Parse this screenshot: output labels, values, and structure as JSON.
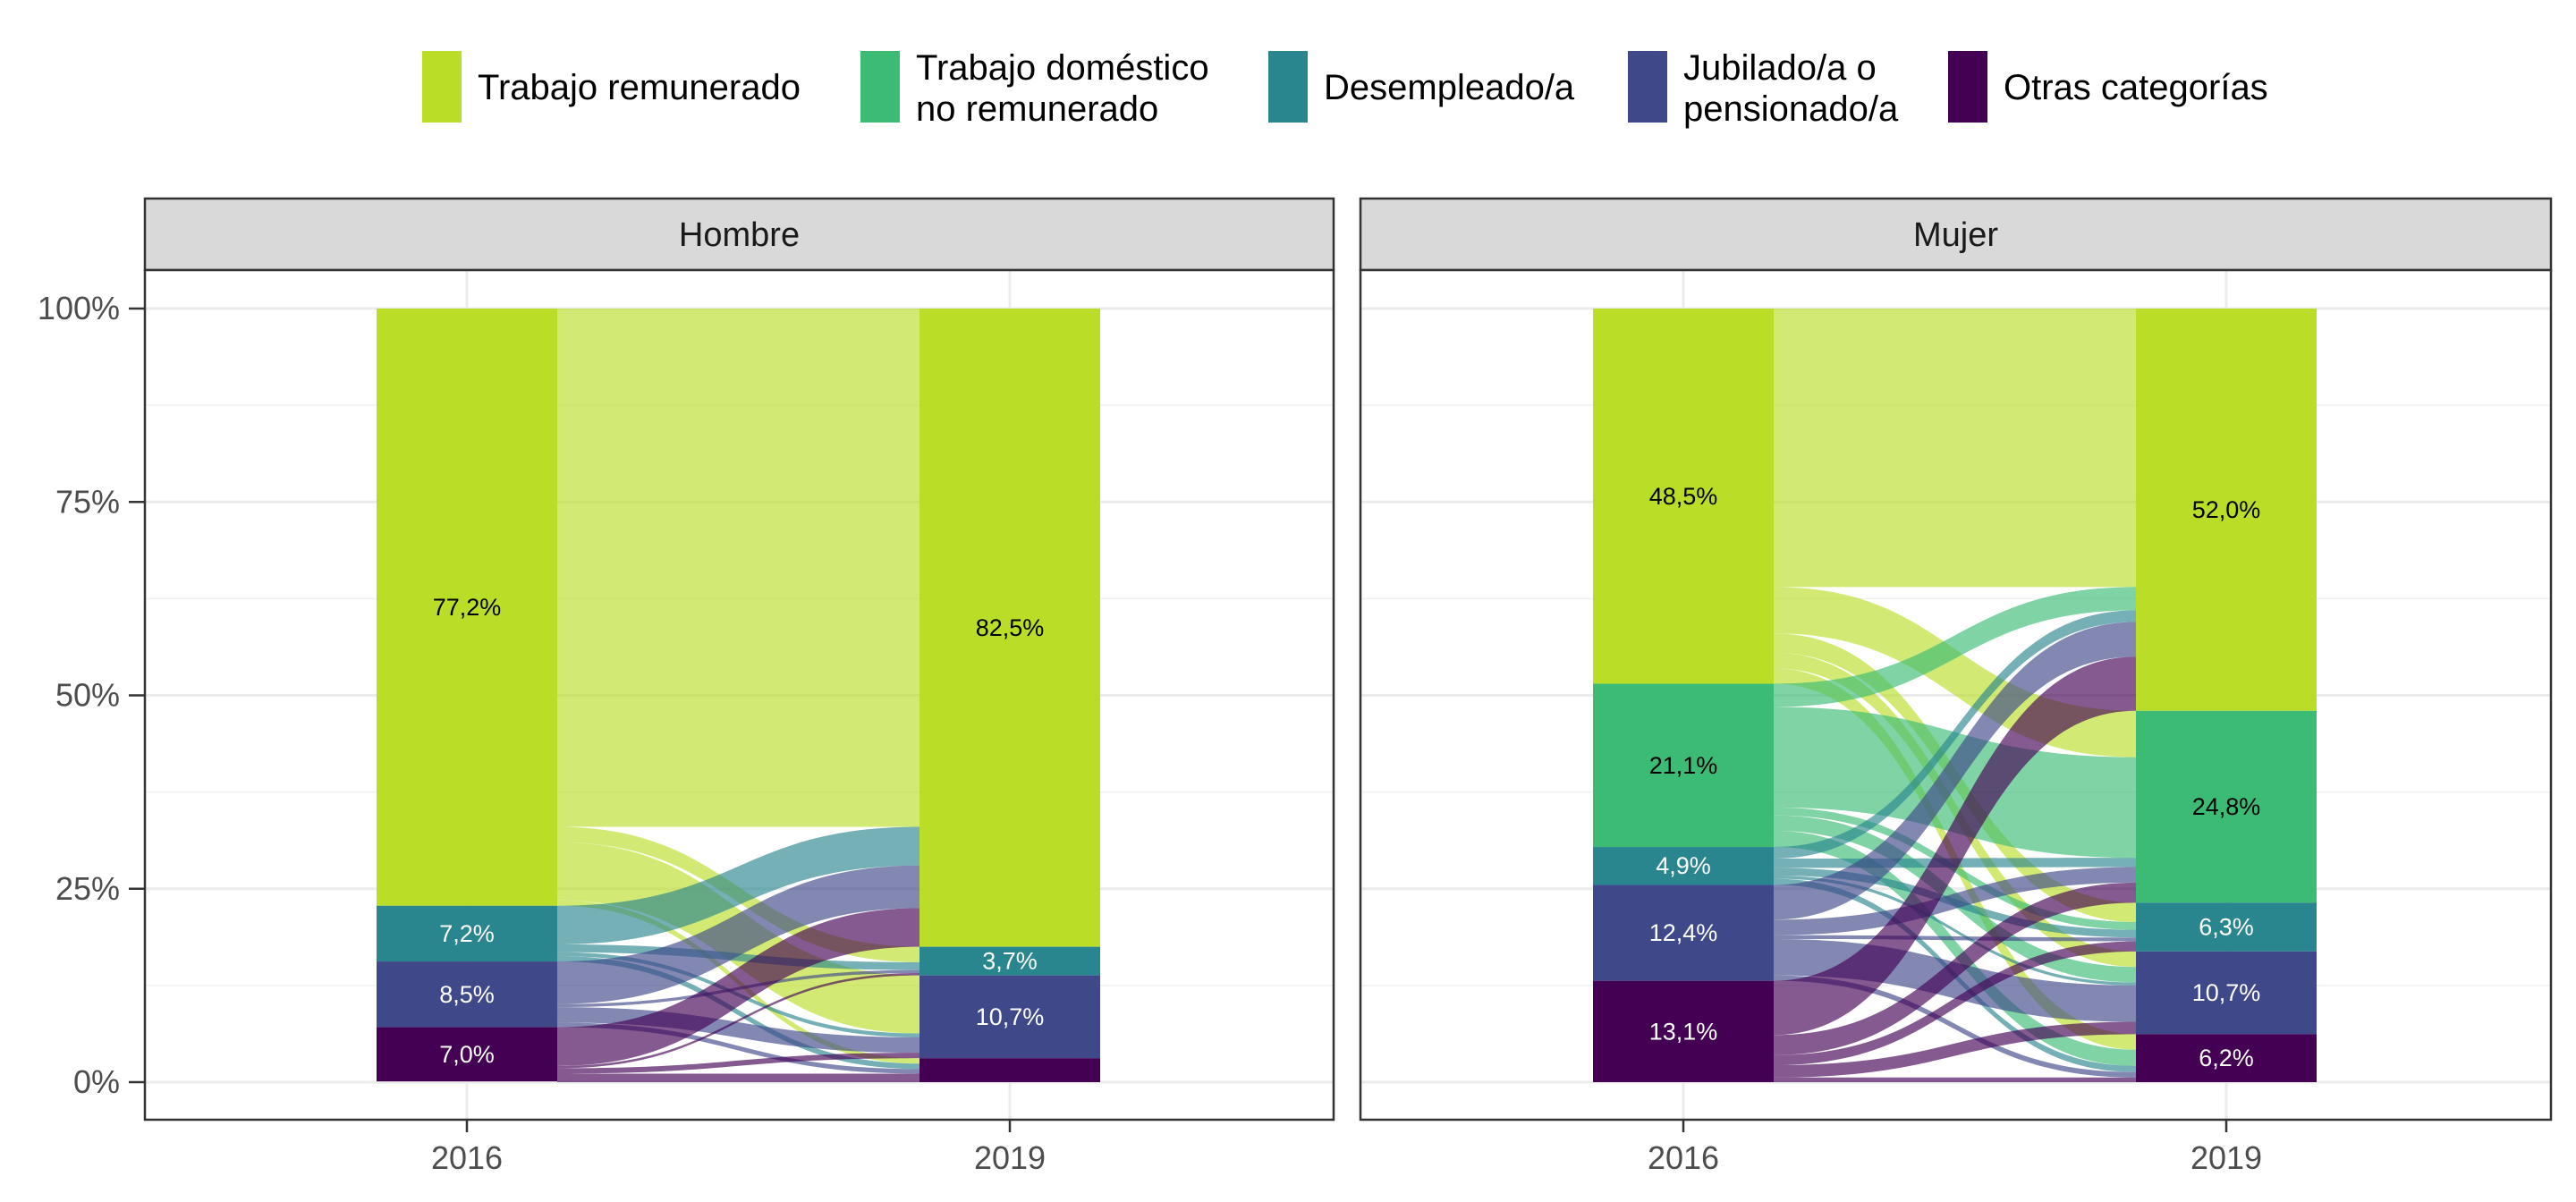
{
  "chart_data": {
    "type": "alluvial",
    "title": "",
    "xlabel": "",
    "ylabel": "",
    "ylim": [
      0,
      1
    ],
    "y_ticks": [
      "0%",
      "25%",
      "50%",
      "75%",
      "100%"
    ],
    "x_categories": [
      "2016",
      "2019"
    ],
    "legend": {
      "placement": "top",
      "items": [
        {
          "key": "trabajo",
          "lines": [
            "Trabajo remunerado"
          ],
          "color": "#BADE28"
        },
        {
          "key": "domestico",
          "lines": [
            "Trabajo doméstico",
            "no remunerado"
          ],
          "color": "#3CBB75"
        },
        {
          "key": "desempleado",
          "lines": [
            "Desempleado/a"
          ],
          "color": "#2A868E"
        },
        {
          "key": "jubilado",
          "lines": [
            "Jubilado/a o",
            "pensionado/a"
          ],
          "color": "#3F4889"
        },
        {
          "key": "otras",
          "lines": [
            "Otras categorías"
          ],
          "color": "#440154"
        }
      ]
    },
    "panels": [
      {
        "name": "Hombre",
        "stacks": {
          "2016": [
            {
              "cat": "trabajo",
              "value": 0.772,
              "label": "77,2%"
            },
            {
              "cat": "desempleado",
              "value": 0.072,
              "label": "7,2%"
            },
            {
              "cat": "jubilado",
              "value": 0.085,
              "label": "8,5%"
            },
            {
              "cat": "otras",
              "value": 0.07,
              "label": "7,0%"
            }
          ],
          "2019": [
            {
              "cat": "trabajo",
              "value": 0.825,
              "label": "82,5%"
            },
            {
              "cat": "desempleado",
              "value": 0.037,
              "label": "3,7%"
            },
            {
              "cat": "jubilado",
              "value": 0.107,
              "label": "10,7%"
            },
            {
              "cat": "otras",
              "value": 0.031,
              "label": ""
            }
          ]
        },
        "flows": [
          {
            "from": "trabajo",
            "to": "trabajo",
            "value": 0.67
          },
          {
            "from": "trabajo",
            "to": "desempleado",
            "value": 0.02
          },
          {
            "from": "trabajo",
            "to": "jubilado",
            "value": 0.075
          },
          {
            "from": "trabajo",
            "to": "otras",
            "value": 0.007
          },
          {
            "from": "desempleado",
            "to": "trabajo",
            "value": 0.05
          },
          {
            "from": "desempleado",
            "to": "desempleado",
            "value": 0.01
          },
          {
            "from": "desempleado",
            "to": "jubilado",
            "value": 0.005
          },
          {
            "from": "desempleado",
            "to": "otras",
            "value": 0.007
          },
          {
            "from": "jubilado",
            "to": "trabajo",
            "value": 0.055
          },
          {
            "from": "jubilado",
            "to": "desempleado",
            "value": 0.004
          },
          {
            "from": "jubilado",
            "to": "jubilado",
            "value": 0.02
          },
          {
            "from": "jubilado",
            "to": "otras",
            "value": 0.006
          },
          {
            "from": "otras",
            "to": "trabajo",
            "value": 0.05
          },
          {
            "from": "otras",
            "to": "desempleado",
            "value": 0.003
          },
          {
            "from": "otras",
            "to": "jubilado",
            "value": 0.007
          },
          {
            "from": "otras",
            "to": "otras",
            "value": 0.011
          }
        ]
      },
      {
        "name": "Mujer",
        "stacks": {
          "2016": [
            {
              "cat": "trabajo",
              "value": 0.485,
              "label": "48,5%"
            },
            {
              "cat": "domestico",
              "value": 0.211,
              "label": "21,1%"
            },
            {
              "cat": "desempleado",
              "value": 0.049,
              "label": "4,9%"
            },
            {
              "cat": "jubilado",
              "value": 0.124,
              "label": "12,4%"
            },
            {
              "cat": "otras",
              "value": 0.131,
              "label": "13,1%"
            }
          ],
          "2019": [
            {
              "cat": "trabajo",
              "value": 0.52,
              "label": "52,0%"
            },
            {
              "cat": "domestico",
              "value": 0.248,
              "label": "24,8%"
            },
            {
              "cat": "desempleado",
              "value": 0.063,
              "label": "6,3%"
            },
            {
              "cat": "jubilado",
              "value": 0.107,
              "label": "10,7%"
            },
            {
              "cat": "otras",
              "value": 0.062,
              "label": "6,2%"
            }
          ]
        },
        "flows": [
          {
            "from": "trabajo",
            "to": "trabajo",
            "value": 0.36
          },
          {
            "from": "trabajo",
            "to": "domestico",
            "value": 0.06
          },
          {
            "from": "trabajo",
            "to": "desempleado",
            "value": 0.025
          },
          {
            "from": "trabajo",
            "to": "jubilado",
            "value": 0.02
          },
          {
            "from": "trabajo",
            "to": "otras",
            "value": 0.02
          },
          {
            "from": "domestico",
            "to": "trabajo",
            "value": 0.03
          },
          {
            "from": "domestico",
            "to": "domestico",
            "value": 0.13
          },
          {
            "from": "domestico",
            "to": "desempleado",
            "value": 0.01
          },
          {
            "from": "domestico",
            "to": "jubilado",
            "value": 0.02
          },
          {
            "from": "domestico",
            "to": "otras",
            "value": 0.021
          },
          {
            "from": "desempleado",
            "to": "trabajo",
            "value": 0.015
          },
          {
            "from": "desempleado",
            "to": "domestico",
            "value": 0.012
          },
          {
            "from": "desempleado",
            "to": "desempleado",
            "value": 0.01
          },
          {
            "from": "desempleado",
            "to": "jubilado",
            "value": 0.004
          },
          {
            "from": "desempleado",
            "to": "otras",
            "value": 0.008
          },
          {
            "from": "jubilado",
            "to": "trabajo",
            "value": 0.045
          },
          {
            "from": "jubilado",
            "to": "domestico",
            "value": 0.02
          },
          {
            "from": "jubilado",
            "to": "desempleado",
            "value": 0.005
          },
          {
            "from": "jubilado",
            "to": "jubilado",
            "value": 0.047
          },
          {
            "from": "jubilado",
            "to": "otras",
            "value": 0.007
          },
          {
            "from": "otras",
            "to": "trabajo",
            "value": 0.07
          },
          {
            "from": "otras",
            "to": "domestico",
            "value": 0.026
          },
          {
            "from": "otras",
            "to": "desempleado",
            "value": 0.013
          },
          {
            "from": "otras",
            "to": "jubilado",
            "value": 0.016
          },
          {
            "from": "otras",
            "to": "otras",
            "value": 0.006
          }
        ]
      }
    ]
  }
}
